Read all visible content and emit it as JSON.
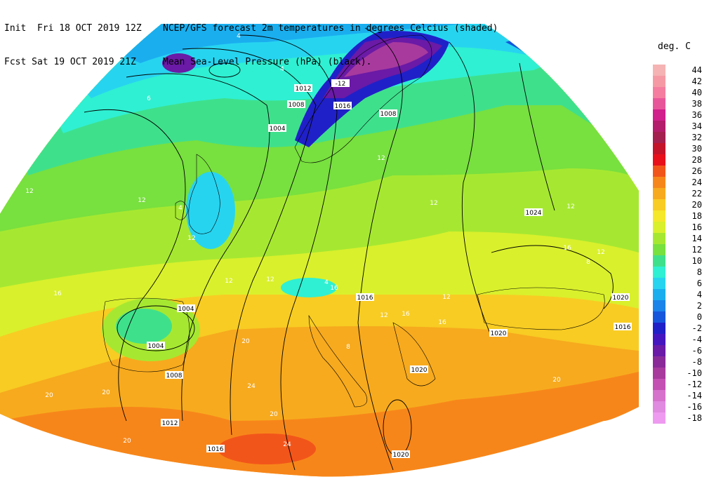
{
  "header": {
    "left_line1": "Init  Fri 18 OCT 2019 12Z",
    "left_line2": "Fcst Sat 19 OCT 2019 21Z",
    "right_line1": "NCEP/GFS forecast 2m temperatures in degrees Celcius (shaded)",
    "right_line2": "Mean Sea-Level Pressure (hPa) (black)."
  },
  "legend": {
    "unit": "deg. C",
    "levels": [
      {
        "label": "44",
        "color": "#f5b3b3"
      },
      {
        "label": "42",
        "color": "#f59aa5"
      },
      {
        "label": "40",
        "color": "#f57ea0"
      },
      {
        "label": "38",
        "color": "#e8569a"
      },
      {
        "label": "36",
        "color": "#d11f8c"
      },
      {
        "label": "34",
        "color": "#b31d6b"
      },
      {
        "label": "32",
        "color": "#a3204f"
      },
      {
        "label": "30",
        "color": "#c4142a"
      },
      {
        "label": "28",
        "color": "#e8101b"
      },
      {
        "label": "26",
        "color": "#f2551a"
      },
      {
        "label": "24",
        "color": "#f7861a"
      },
      {
        "label": "22",
        "color": "#f7aa1e"
      },
      {
        "label": "20",
        "color": "#f8cc23"
      },
      {
        "label": "18",
        "color": "#f5e72a"
      },
      {
        "label": "16",
        "color": "#d9f02c"
      },
      {
        "label": "14",
        "color": "#a6e831"
      },
      {
        "label": "12",
        "color": "#78e03f"
      },
      {
        "label": "10",
        "color": "#3fe08c"
      },
      {
        "label": "8",
        "color": "#2ff0d2"
      },
      {
        "label": "6",
        "color": "#27d4f0"
      },
      {
        "label": "4",
        "color": "#1aaeef"
      },
      {
        "label": "2",
        "color": "#1a84ea"
      },
      {
        "label": "0",
        "color": "#1656dd"
      },
      {
        "label": "-2",
        "color": "#2020c8"
      },
      {
        "label": "-4",
        "color": "#4516c0"
      },
      {
        "label": "-6",
        "color": "#6a1aa6"
      },
      {
        "label": "-8",
        "color": "#8a2a98"
      },
      {
        "label": "-10",
        "color": "#a83a9e"
      },
      {
        "label": "-12",
        "color": "#c450b4"
      },
      {
        "label": "-14",
        "color": "#d672cc"
      },
      {
        "label": "-16",
        "color": "#e08ae0"
      },
      {
        "label": "-18",
        "color": "#ee9af0"
      }
    ]
  },
  "isobar_labels": [
    {
      "text": "1012"
    },
    {
      "text": "1008"
    },
    {
      "text": "1004"
    },
    {
      "text": "1016"
    },
    {
      "text": "1008"
    },
    {
      "text": "1024"
    },
    {
      "text": "1004"
    },
    {
      "text": "1004"
    },
    {
      "text": "1008"
    },
    {
      "text": "1016"
    },
    {
      "text": "1020"
    },
    {
      "text": "1020"
    },
    {
      "text": "1020"
    },
    {
      "text": "1016"
    },
    {
      "text": "1012"
    },
    {
      "text": "1016"
    },
    {
      "text": "1020"
    },
    {
      "text": "-12"
    }
  ],
  "temp_labels": [
    {
      "text": "4"
    },
    {
      "text": "4"
    },
    {
      "text": "6"
    },
    {
      "text": "12"
    },
    {
      "text": "12"
    },
    {
      "text": "4"
    },
    {
      "text": "12"
    },
    {
      "text": "16"
    },
    {
      "text": "12"
    },
    {
      "text": "12"
    },
    {
      "text": "16"
    },
    {
      "text": "12"
    },
    {
      "text": "12"
    },
    {
      "text": "16"
    },
    {
      "text": "12"
    },
    {
      "text": "20"
    },
    {
      "text": "24"
    },
    {
      "text": "20"
    },
    {
      "text": "20"
    },
    {
      "text": "20"
    },
    {
      "text": "24"
    },
    {
      "text": "12"
    },
    {
      "text": "8"
    },
    {
      "text": "4"
    },
    {
      "text": "12"
    },
    {
      "text": "16"
    },
    {
      "text": "16"
    },
    {
      "text": "20"
    },
    {
      "text": "8"
    },
    {
      "text": "12"
    },
    {
      "text": "20"
    }
  ]
}
